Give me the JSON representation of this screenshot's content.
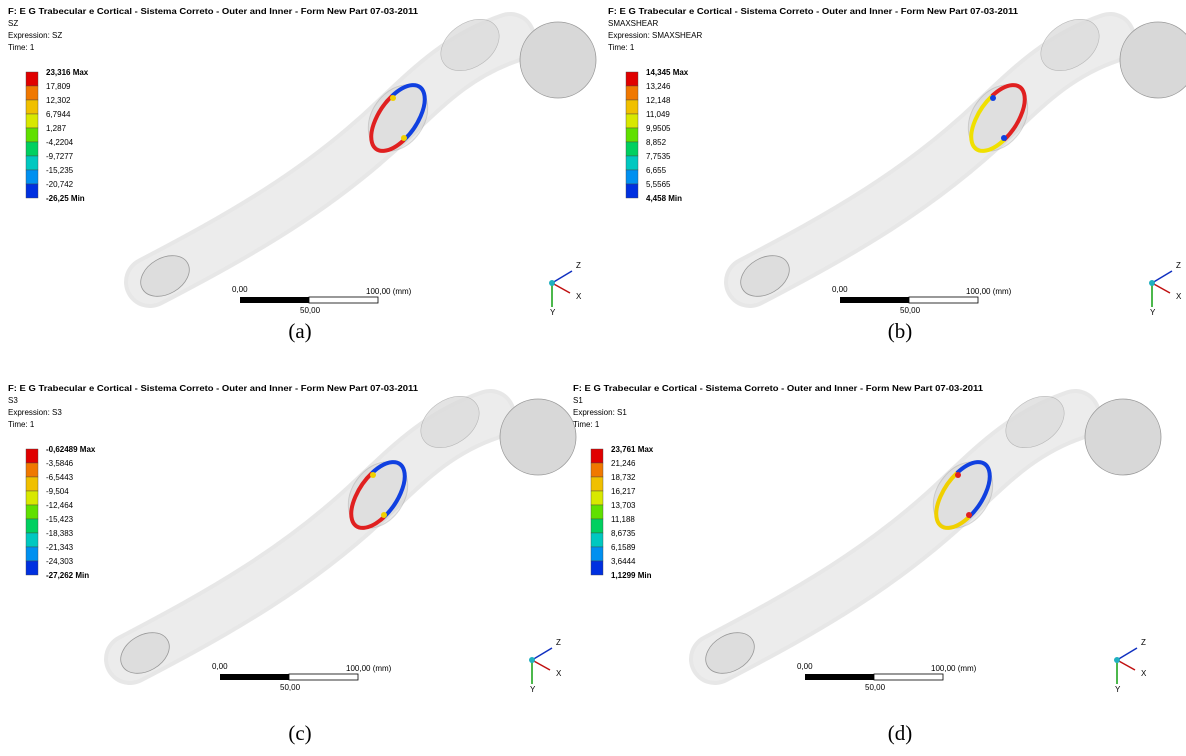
{
  "panels": [
    {
      "title": "F: E G Trabecular e Cortical - Sistema Correto - Outer and Inner - Form New Part 07-03-2011",
      "quantity": "SZ",
      "expression": "Expression: SZ",
      "time": "Time: 1",
      "legend": [
        "23,316 Max",
        "17,809",
        "12,302",
        "6,7944",
        "1,287",
        "-4,2204",
        "-9,7277",
        "-15,235",
        "-20,742",
        "-26,25 Min"
      ],
      "scale": {
        "start": "0,00",
        "end": "100,00 (mm)",
        "mid": "50,00"
      },
      "axes": [
        "Z",
        "X",
        "Y"
      ],
      "caption": "(a)"
    },
    {
      "title": "F: E G Trabecular e Cortical - Sistema Correto - Outer and Inner - Form New Part 07-03-2011",
      "quantity": "SMAXSHEAR",
      "expression": "Expression: SMAXSHEAR",
      "time": "Time: 1",
      "legend": [
        "14,345 Max",
        "13,246",
        "12,148",
        "11,049",
        "9,9505",
        "8,852",
        "7,7535",
        "6,655",
        "5,5565",
        "4,458 Min"
      ],
      "scale": {
        "start": "0,00",
        "end": "100,00 (mm)",
        "mid": "50,00"
      },
      "axes": [
        "Z",
        "X",
        "Y"
      ],
      "caption": "(b)"
    },
    {
      "title": "F: E G Trabecular e Cortical - Sistema Correto - Outer and Inner - Form New Part 07-03-2011",
      "quantity": "S3",
      "expression": "Expression: S3",
      "time": "Time: 1",
      "legend": [
        "-0,62489 Max",
        "-3,5846",
        "-6,5443",
        "-9,504",
        "-12,464",
        "-15,423",
        "-18,383",
        "-21,343",
        "-24,303",
        "-27,262 Min"
      ],
      "scale": {
        "start": "0,00",
        "end": "100,00 (mm)",
        "mid": "50,00"
      },
      "axes": [
        "Z",
        "X",
        "Y"
      ],
      "caption": "(c)"
    },
    {
      "title": "F: E G Trabecular e Cortical - Sistema Correto - Outer and Inner - Form New Part 07-03-2011",
      "quantity": "S1",
      "expression": "Expression: S1",
      "time": "Time: 1",
      "legend": [
        "23,761 Max",
        "21,246",
        "18,732",
        "16,217",
        "13,703",
        "11,188",
        "8,6735",
        "6,1589",
        "3,6444",
        "1,1299 Min"
      ],
      "scale": {
        "start": "0,00",
        "end": "100,00 (mm)",
        "mid": "50,00"
      },
      "axes": [
        "Z",
        "X",
        "Y"
      ],
      "caption": "(d)"
    }
  ]
}
